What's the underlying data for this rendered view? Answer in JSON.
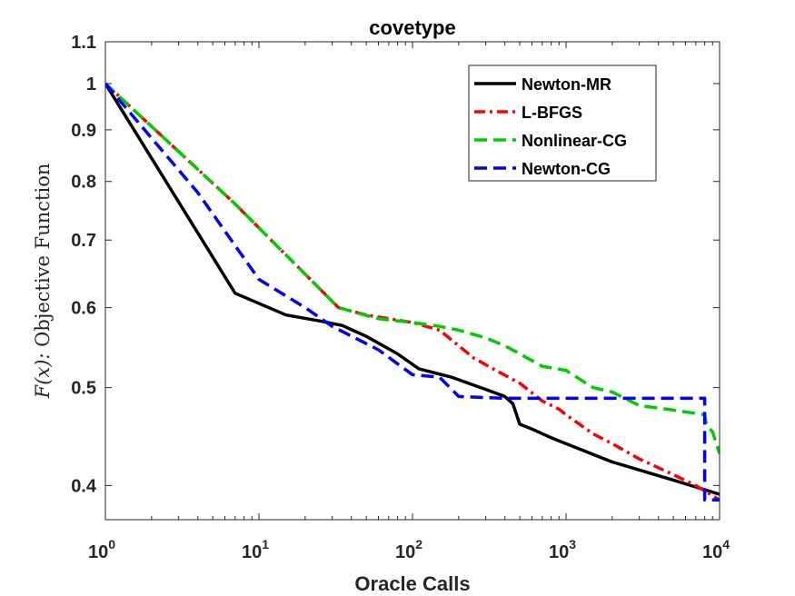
{
  "chart_data": {
    "type": "line",
    "title": "covetype",
    "xlabel": "Oracle Calls",
    "ylabel_func": "F(x):",
    "ylabel_rest": " Objective Function",
    "xscale": "log",
    "yscale": "log",
    "xlim": [
      1,
      10000
    ],
    "ylim": [
      0.37,
      1.1
    ],
    "xticks": [
      {
        "value": 1,
        "base": "10",
        "exp": "0"
      },
      {
        "value": 10,
        "base": "10",
        "exp": "1"
      },
      {
        "value": 100,
        "base": "10",
        "exp": "2"
      },
      {
        "value": 1000,
        "base": "10",
        "exp": "3"
      },
      {
        "value": 10000,
        "base": "10",
        "exp": "4"
      }
    ],
    "yticks": [
      {
        "value": 0.4,
        "label": "0.4"
      },
      {
        "value": 0.5,
        "label": "0.5"
      },
      {
        "value": 0.6,
        "label": "0.6"
      },
      {
        "value": 0.7,
        "label": "0.7"
      },
      {
        "value": 0.8,
        "label": "0.8"
      },
      {
        "value": 0.9,
        "label": "0.9"
      },
      {
        "value": 1.0,
        "label": "1"
      },
      {
        "value": 1.1,
        "label": "1.1"
      }
    ],
    "legend_position": "top-right",
    "series": [
      {
        "name": "Newton-MR",
        "color": "#000000",
        "dash": "solid",
        "points": [
          [
            1,
            1.0
          ],
          [
            7,
            0.62
          ],
          [
            15,
            0.59
          ],
          [
            25,
            0.582
          ],
          [
            35,
            0.576
          ],
          [
            50,
            0.562
          ],
          [
            80,
            0.54
          ],
          [
            110,
            0.522
          ],
          [
            180,
            0.512
          ],
          [
            300,
            0.498
          ],
          [
            400,
            0.49
          ],
          [
            450,
            0.482
          ],
          [
            500,
            0.46
          ],
          [
            600,
            0.455
          ],
          [
            800,
            0.446
          ],
          [
            1000,
            0.44
          ],
          [
            2000,
            0.422
          ],
          [
            5000,
            0.405
          ],
          [
            10000,
            0.392
          ]
        ]
      },
      {
        "name": "L-BFGS",
        "color": "#ff0000",
        "dash": "dashdot",
        "points": [
          [
            1,
            1.0
          ],
          [
            7,
            0.76
          ],
          [
            33,
            0.6
          ],
          [
            50,
            0.59
          ],
          [
            100,
            0.58
          ],
          [
            150,
            0.57
          ],
          [
            200,
            0.55
          ],
          [
            250,
            0.535
          ],
          [
            350,
            0.52
          ],
          [
            500,
            0.505
          ],
          [
            700,
            0.485
          ],
          [
            900,
            0.476
          ],
          [
            1000,
            0.47
          ],
          [
            1500,
            0.45
          ],
          [
            2000,
            0.44
          ],
          [
            3000,
            0.425
          ],
          [
            5000,
            0.41
          ],
          [
            7000,
            0.4
          ],
          [
            10000,
            0.387
          ]
        ]
      },
      {
        "name": "Nonlinear-CG",
        "color": "#00cc00",
        "dash": "dashed",
        "points": [
          [
            1,
            1.0
          ],
          [
            7,
            0.76
          ],
          [
            33,
            0.6
          ],
          [
            60,
            0.585
          ],
          [
            100,
            0.58
          ],
          [
            150,
            0.575
          ],
          [
            200,
            0.57
          ],
          [
            300,
            0.56
          ],
          [
            400,
            0.55
          ],
          [
            500,
            0.54
          ],
          [
            700,
            0.525
          ],
          [
            1000,
            0.52
          ],
          [
            1500,
            0.5
          ],
          [
            2000,
            0.495
          ],
          [
            3000,
            0.48
          ],
          [
            5000,
            0.475
          ],
          [
            8000,
            0.47
          ],
          [
            8200,
            0.46
          ],
          [
            9000,
            0.452
          ],
          [
            10000,
            0.43
          ]
        ]
      },
      {
        "name": "Newton-CG",
        "color": "#0000ff",
        "dash": "dashed",
        "points": [
          [
            1,
            1.0
          ],
          [
            4,
            0.78
          ],
          [
            10,
            0.64
          ],
          [
            20,
            0.6
          ],
          [
            30,
            0.575
          ],
          [
            60,
            0.545
          ],
          [
            100,
            0.515
          ],
          [
            150,
            0.512
          ],
          [
            200,
            0.49
          ],
          [
            400,
            0.488
          ],
          [
            1000,
            0.488
          ],
          [
            8000,
            0.488
          ],
          [
            8000,
            0.387
          ],
          [
            10000,
            0.387
          ]
        ]
      }
    ]
  }
}
